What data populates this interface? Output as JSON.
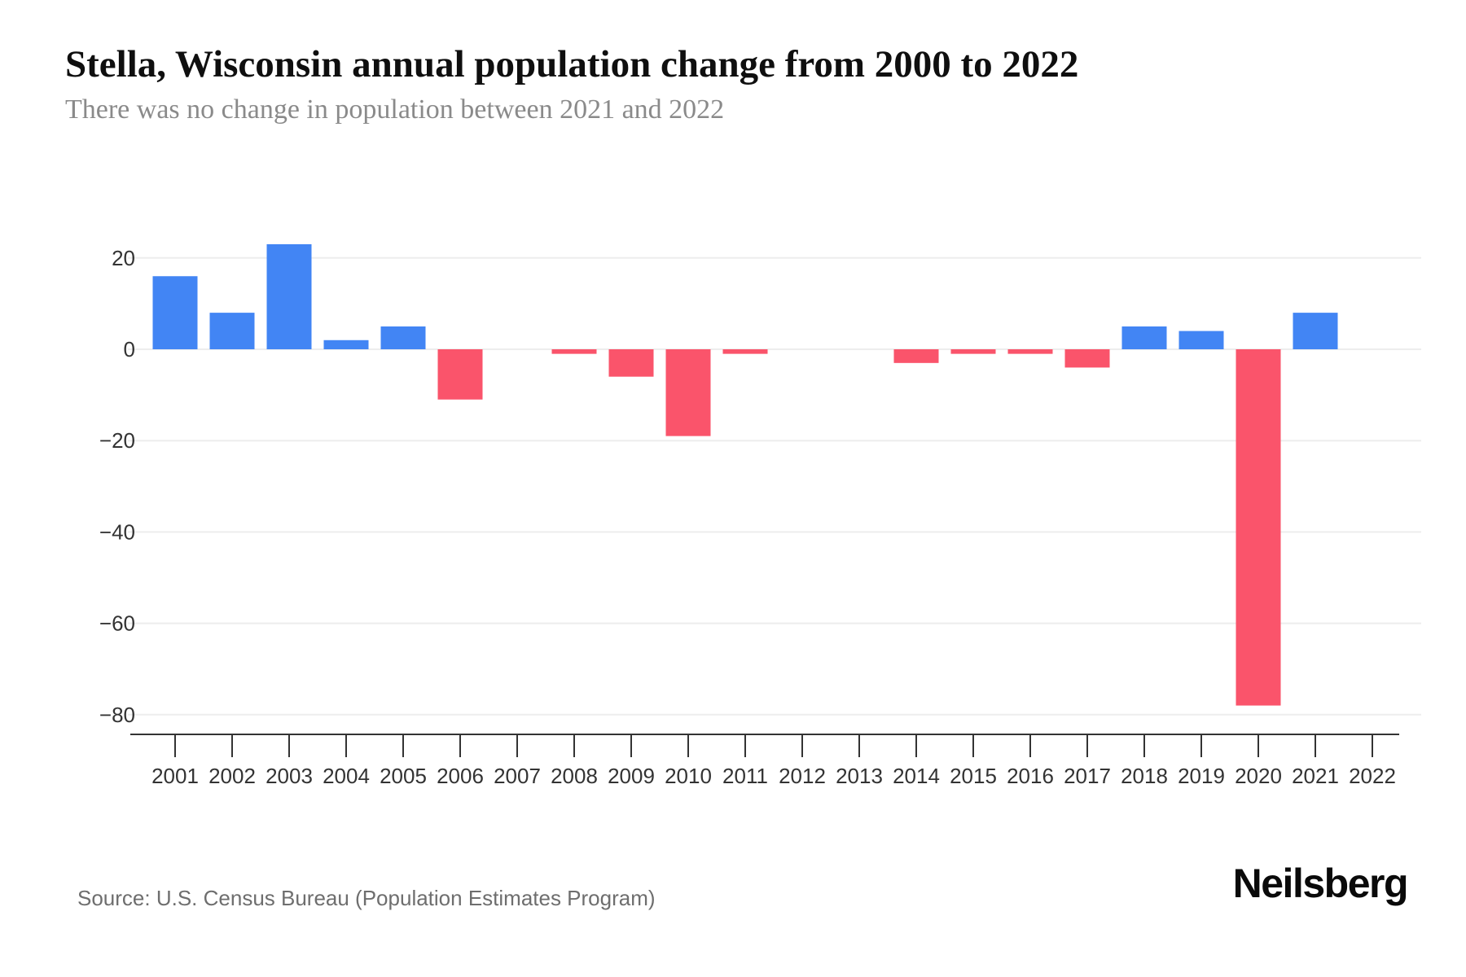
{
  "header": {
    "title": "Stella, Wisconsin annual population change from 2000 to 2022",
    "subtitle": "There was no change in population between 2021 and 2022"
  },
  "footer": {
    "source": "Source: U.S. Census Bureau (Population Estimates Program)",
    "brand": "Neilsberg"
  },
  "chart_data": {
    "type": "bar",
    "title": "Stella, Wisconsin annual population change from 2000 to 2022",
    "subtitle": "There was no change in population between 2021 and 2022",
    "categories": [
      "2001",
      "2002",
      "2003",
      "2004",
      "2005",
      "2006",
      "2007",
      "2008",
      "2009",
      "2010",
      "2011",
      "2012",
      "2013",
      "2014",
      "2015",
      "2016",
      "2017",
      "2018",
      "2019",
      "2020",
      "2021",
      "2022"
    ],
    "values": [
      16,
      8,
      23,
      2,
      5,
      -11,
      0,
      -1,
      -6,
      -19,
      -1,
      0,
      0,
      -3,
      -1,
      -1,
      -4,
      5,
      4,
      -78,
      8,
      0
    ],
    "xlabel": "",
    "ylabel": "",
    "ylim": [
      -80,
      23
    ],
    "yticks": [
      20,
      0,
      -20,
      -40,
      -60,
      -80
    ],
    "ytick_labels": [
      "20",
      "0",
      "−20",
      "−40",
      "−60",
      "−80"
    ],
    "grid": "horizontal",
    "legend_position": "none",
    "colors": {
      "positive_bar": "#4285F4",
      "negative_bar": "#FA546B",
      "gridline": "#ededed",
      "axis": "#333333",
      "tick_label": "#333333"
    }
  }
}
